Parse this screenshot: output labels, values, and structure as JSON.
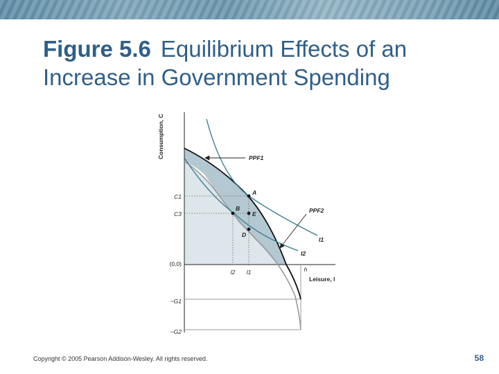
{
  "header": {
    "figure_number": "Figure 5.6",
    "figure_title": "Equilibrium Effects of an Increase in Government Spending"
  },
  "diagram": {
    "y_axis_label": "Consumption, C",
    "x_axis_label": "Leisure, l",
    "origin_label": "(0,0)",
    "y_ticks": {
      "c1": "C1",
      "c3": "C3",
      "neg_g1": "−G1",
      "neg_g2": "−G2"
    },
    "x_ticks": {
      "l2": "l2",
      "l1": "l1",
      "h": "h"
    },
    "curve_labels": {
      "ppf1": "PPF1",
      "ppf2": "PPF2",
      "i1": "I1",
      "i2": "I2"
    },
    "points": {
      "a": "A",
      "b": "B",
      "e": "E",
      "d": "D"
    },
    "colors": {
      "shaded_region": "#b4c8d2",
      "lower_region": "#dde6eb",
      "indifference_curves": "#3a7f93",
      "ppf1_curve": "#111111",
      "ppf2_curve": "#9a9a9a",
      "title": "#2f5f8a"
    }
  },
  "footer": {
    "copyright": "Copyright © 2005 Pearson Addison-Wesley. All rights reserved.",
    "page_number": "58"
  }
}
